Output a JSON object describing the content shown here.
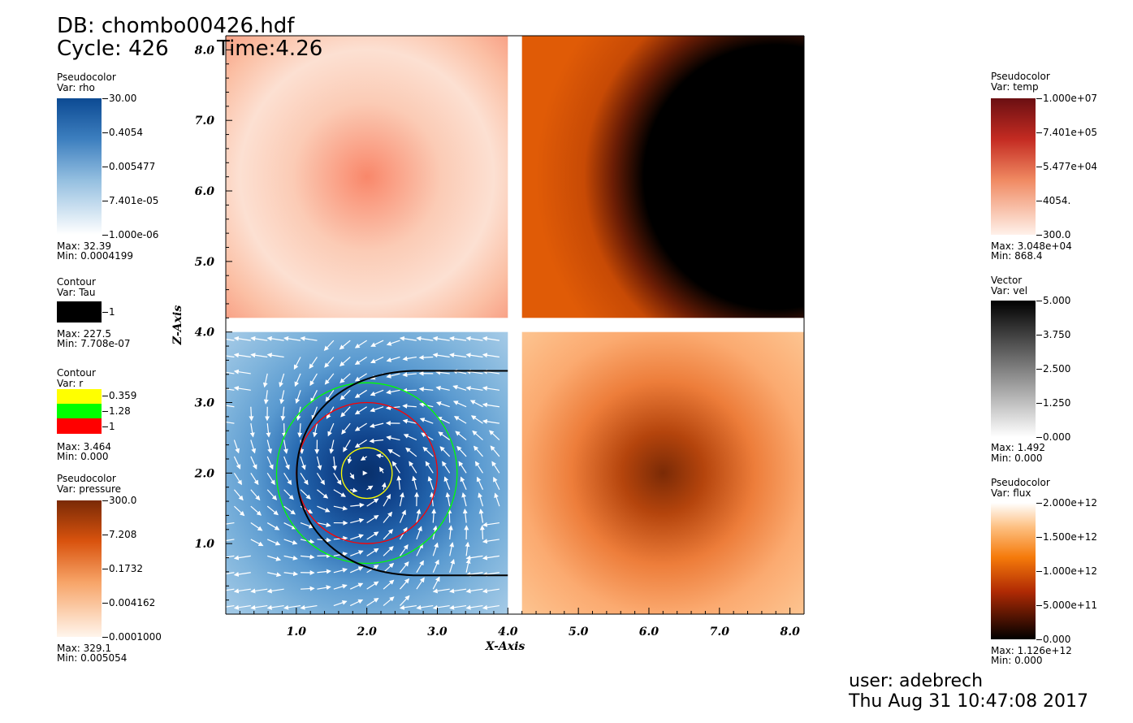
{
  "header": {
    "db": "DB: chombo00426.hdf",
    "cycle": "Cycle: 426",
    "time": "Time:4.26"
  },
  "footer": {
    "user": "user: adebrech",
    "date": "Thu Aug 31 10:47:08 2017"
  },
  "legends": {
    "rho": {
      "title": "Pseudocolor",
      "var": "Var: rho",
      "ticks": [
        "30.00",
        "0.4054",
        "0.005477",
        "7.401e-05",
        "1.000e-06"
      ],
      "max": "Max:  32.39",
      "min": "Min:  0.0004199"
    },
    "tau": {
      "title": "Contour",
      "var": "Var: Tau",
      "ticks": [
        "1"
      ],
      "max": "Max:  227.5",
      "min": "Min:  7.708e-07"
    },
    "r": {
      "title": "Contour",
      "var": "Var: r",
      "ticks": [
        "0.359",
        "1.28",
        "1"
      ],
      "colors": [
        "#ffff00",
        "#00ff00",
        "#ff0000"
      ],
      "max": "Max:  3.464",
      "min": "Min:  0.000"
    },
    "pressure": {
      "title": "Pseudocolor",
      "var": "Var: pressure",
      "ticks": [
        "300.0",
        "7.208",
        "0.1732",
        "0.004162",
        "0.0001000"
      ],
      "max": "Max:  329.1",
      "min": "Min:  0.005054"
    },
    "temp": {
      "title": "Pseudocolor",
      "var": "Var: temp",
      "ticks": [
        "1.000e+07",
        "7.401e+05",
        "5.477e+04",
        "4054.",
        "300.0"
      ],
      "max": "Max:  3.048e+04",
      "min": "Min:  868.4"
    },
    "vel": {
      "title": "Vector",
      "var": "Var: vel",
      "ticks": [
        "5.000",
        "3.750",
        "2.500",
        "1.250",
        "0.000"
      ],
      "max": "Max:  1.492",
      "min": "Min:  0.000"
    },
    "flux": {
      "title": "Pseudocolor",
      "var": "Var: flux",
      "ticks": [
        "2.000e+12",
        "1.500e+12",
        "1.000e+12",
        "5.000e+11",
        "0.000"
      ],
      "max": "Max:  1.126e+12",
      "min": "Min:  0.000"
    }
  },
  "chart_data": {
    "type": "heatmap",
    "xlabel": "X-Axis",
    "ylabel": "Z-Axis",
    "xlim": [
      0.0,
      8.2
    ],
    "ylim": [
      0.0,
      8.2
    ],
    "xticks": [
      "1.0",
      "2.0",
      "3.0",
      "4.0",
      "5.0",
      "6.0",
      "7.0",
      "8.0"
    ],
    "yticks": [
      "1.0",
      "2.0",
      "3.0",
      "4.0",
      "5.0",
      "6.0",
      "7.0",
      "8.0"
    ],
    "panels": [
      {
        "name": "rho",
        "x": [
          0.0,
          4.0
        ],
        "y": [
          4.2,
          8.2
        ],
        "center": [
          2.0,
          6.2
        ]
      },
      {
        "name": "temp",
        "x": [
          4.2,
          8.2
        ],
        "y": [
          4.2,
          8.2
        ],
        "center": [
          6.2,
          6.2
        ]
      },
      {
        "name": "vel",
        "x": [
          0.0,
          4.0
        ],
        "y": [
          0.0,
          4.0
        ],
        "center": [
          2.0,
          2.0
        ]
      },
      {
        "name": "flux",
        "x": [
          4.2,
          8.2
        ],
        "y": [
          0.0,
          4.0
        ],
        "center": [
          6.2,
          2.0
        ]
      }
    ],
    "contours_r": [
      {
        "level": 0.359,
        "color": "#ffff00",
        "radius": 0.359
      },
      {
        "level": 1.28,
        "color": "#00ff00",
        "radius": 1.28
      },
      {
        "level": 1,
        "color": "#ff0000",
        "radius": 1.0
      }
    ],
    "contour_tau": {
      "level": 1,
      "color": "#000000",
      "radius": 1.3,
      "top_z": 3.45,
      "bottom_z": 0.55,
      "x_end": 4.0
    }
  }
}
